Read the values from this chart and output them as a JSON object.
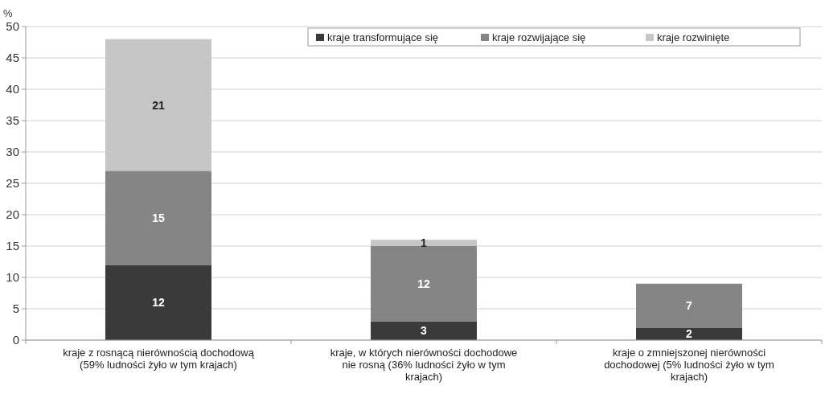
{
  "chart_data": {
    "type": "bar",
    "stacked": true,
    "ylabel": "%",
    "categories": [
      "kraje z rosnącą nierównością dochodową (59% ludności żyło w tym krajach)",
      "kraje, w których nierówności dochodowe nie rosną (36% ludności żyło w tym krajach)",
      "kraje o zmniejszonej nierówności dochodowej (5% ludności żyło w tym krajach)"
    ],
    "series": [
      {
        "name": "kraje transformujące się",
        "color": "#3a3a3a",
        "values": [
          12,
          3,
          2
        ]
      },
      {
        "name": "kraje rozwijające się",
        "color": "#858585",
        "values": [
          15,
          12,
          7
        ]
      },
      {
        "name": "kraje rozwinięte",
        "color": "#c6c6c6",
        "values": [
          21,
          1,
          null
        ]
      }
    ],
    "ylim": [
      0,
      50
    ],
    "yticks": [
      0,
      5,
      10,
      15,
      20,
      25,
      30,
      35,
      40,
      45,
      50
    ],
    "grid": "y",
    "legend": "top right",
    "data_labels": true
  }
}
